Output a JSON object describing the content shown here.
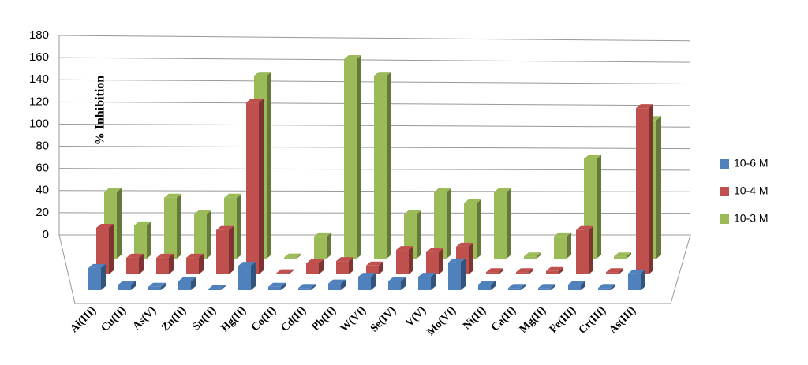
{
  "chart_data": {
    "type": "bar3d",
    "y_label": "% Inhibition",
    "categories": [
      "Al(III)",
      "Cu(II)",
      "As(V)",
      "Zn(II)",
      "Sn(II)",
      "Hg(II)",
      "Co(II)",
      "Cd(II)",
      "Pb(II)",
      "W(VI)",
      "Se(IV)",
      "V(V)",
      "Mo(VI)",
      "Ni(II)",
      "Ca(II)",
      "Mg(II)",
      "Fe(III)",
      "Cr(III)",
      "As(III)"
    ],
    "series": [
      {
        "name": "10-6 M",
        "color": "#4f81bd",
        "values": [
          20,
          5,
          3,
          8,
          1,
          22,
          3,
          2,
          6,
          12,
          8,
          12,
          25,
          5,
          2,
          2,
          5,
          2,
          15
        ]
      },
      {
        "name": "10-4 M",
        "color": "#c0504d",
        "values": [
          42,
          15,
          15,
          15,
          40,
          155,
          1,
          10,
          12,
          8,
          22,
          20,
          25,
          2,
          2,
          3,
          40,
          2,
          150
        ]
      },
      {
        "name": "10-3 M",
        "color": "#9bbb59",
        "values": [
          60,
          30,
          55,
          40,
          55,
          165,
          1,
          20,
          180,
          165,
          40,
          60,
          50,
          60,
          2,
          20,
          90,
          2,
          125
        ]
      }
    ],
    "ylim": [
      0,
      180
    ],
    "yticks": [
      0,
      20,
      40,
      60,
      80,
      100,
      120,
      140,
      160,
      180
    ],
    "grid": true,
    "legend": "right"
  }
}
